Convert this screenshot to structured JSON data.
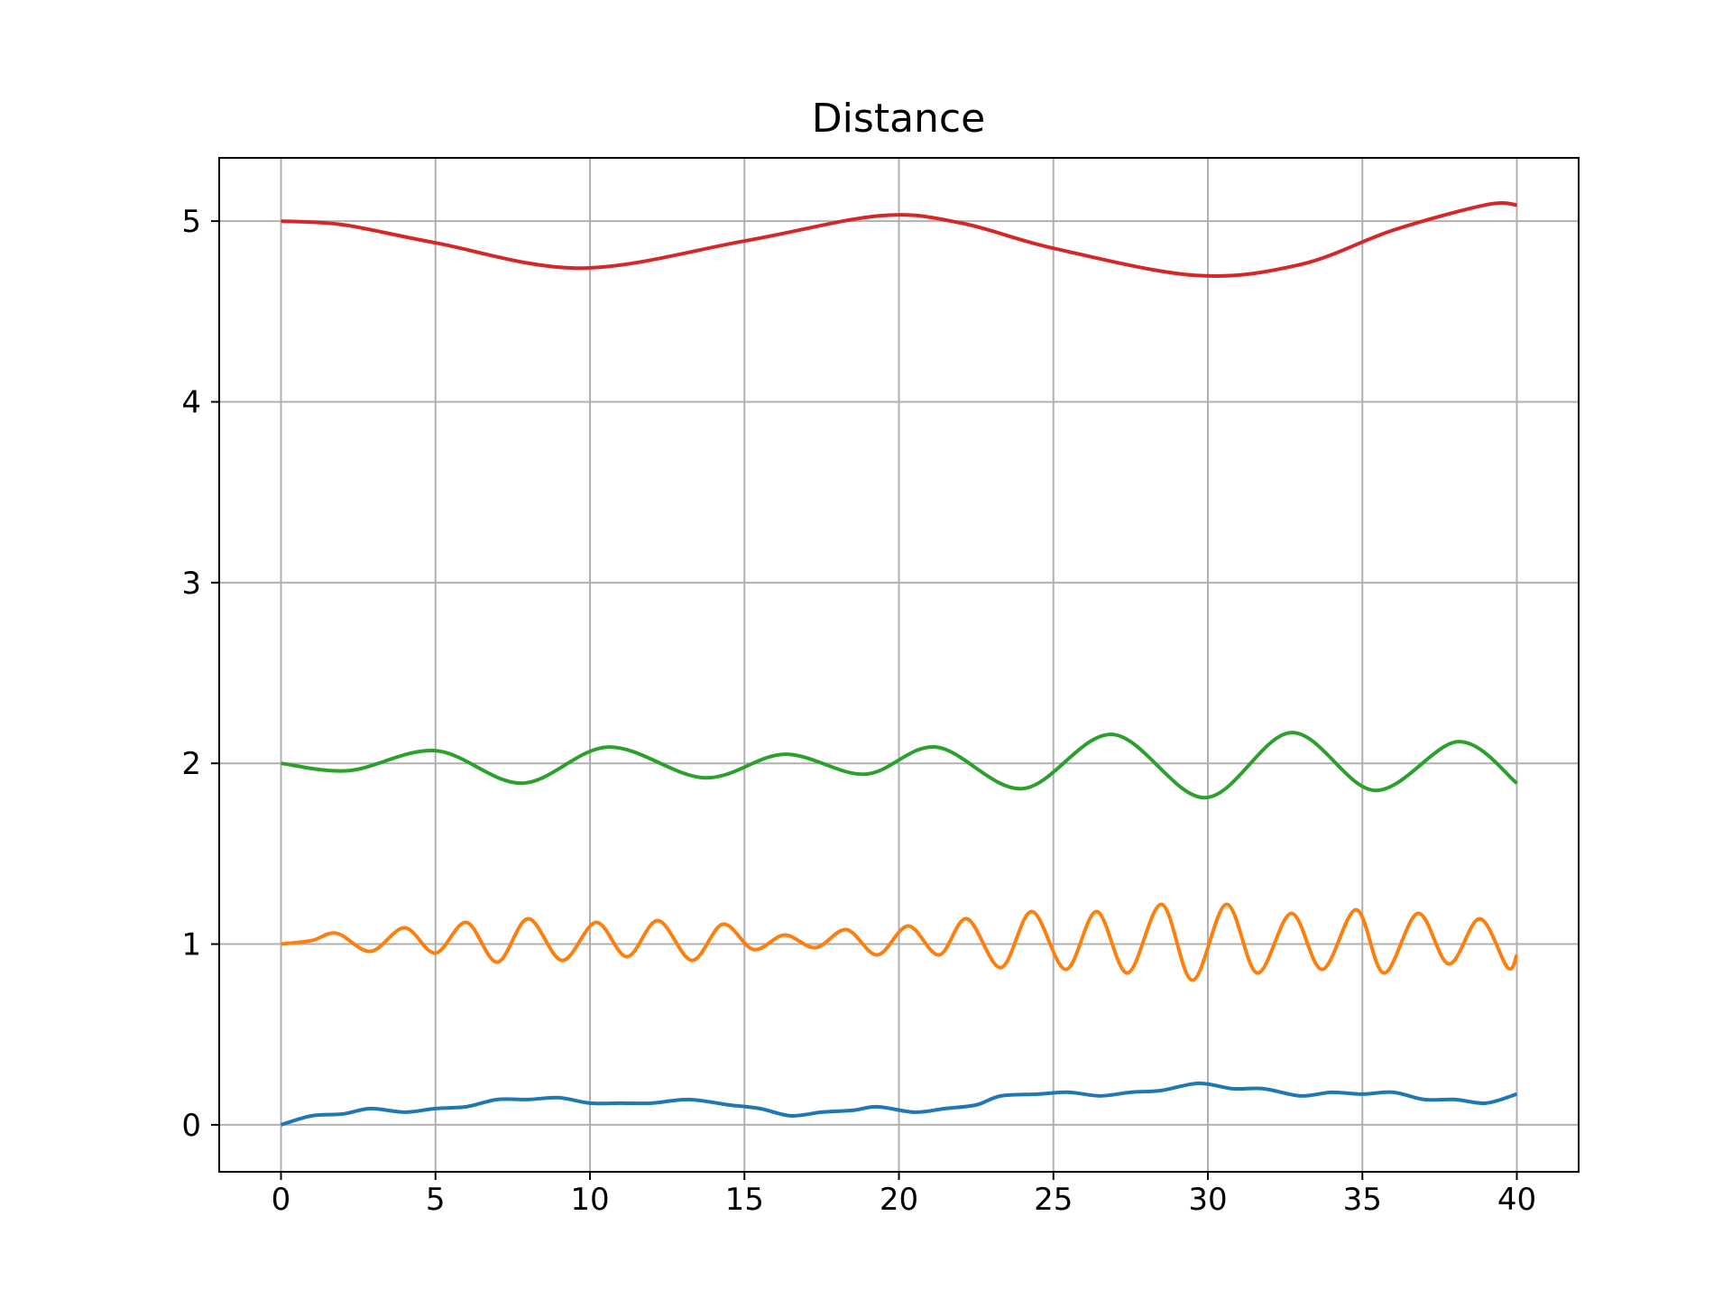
{
  "chart_data": {
    "type": "line",
    "title": "Distance",
    "grid": true,
    "xlim": [
      -2,
      42
    ],
    "ylim": [
      -0.26,
      5.35
    ],
    "xticks": [
      0,
      5,
      10,
      15,
      20,
      25,
      30,
      35,
      40
    ],
    "yticks": [
      0,
      1,
      2,
      3,
      4,
      5
    ],
    "series": [
      {
        "color": "#1f77b4",
        "x": [
          0,
          1,
          2,
          2.9,
          4,
          5,
          6,
          7,
          8,
          9,
          10,
          11,
          12,
          13.2,
          14.5,
          15.5,
          16.5,
          17.5,
          18.5,
          19.3,
          20.5,
          21.5,
          22.5,
          23.3,
          24.5,
          25.5,
          26.5,
          27.5,
          28.5,
          29.7,
          30.8,
          31.8,
          33,
          34,
          35,
          36,
          37,
          38,
          39,
          40
        ],
        "values": [
          0,
          0.05,
          0.06,
          0.09,
          0.07,
          0.09,
          0.1,
          0.14,
          0.14,
          0.15,
          0.12,
          0.12,
          0.12,
          0.14,
          0.11,
          0.09,
          0.05,
          0.07,
          0.08,
          0.1,
          0.07,
          0.09,
          0.11,
          0.16,
          0.17,
          0.18,
          0.16,
          0.18,
          0.19,
          0.23,
          0.2,
          0.2,
          0.16,
          0.18,
          0.17,
          0.18,
          0.14,
          0.14,
          0.12,
          0.17
        ]
      },
      {
        "color": "#ff7f0e",
        "x": [
          0,
          1,
          1.8,
          2.9,
          4,
          5,
          6,
          7,
          8,
          9.1,
          10.2,
          11.2,
          12.2,
          13.3,
          14.3,
          15.3,
          16.3,
          17.3,
          18.3,
          19.3,
          20.3,
          21.3,
          22.2,
          23.3,
          24.3,
          25.4,
          26.4,
          27.4,
          28.5,
          29.5,
          30.6,
          31.6,
          32.7,
          33.7,
          34.8,
          35.7,
          36.8,
          37.8,
          38.8,
          39.7,
          40
        ],
        "values": [
          1.0,
          1.02,
          1.06,
          0.96,
          1.09,
          0.95,
          1.12,
          0.9,
          1.14,
          0.91,
          1.12,
          0.93,
          1.13,
          0.91,
          1.11,
          0.97,
          1.05,
          0.98,
          1.08,
          0.94,
          1.1,
          0.94,
          1.14,
          0.87,
          1.18,
          0.86,
          1.18,
          0.84,
          1.22,
          0.8,
          1.22,
          0.84,
          1.17,
          0.86,
          1.19,
          0.84,
          1.17,
          0.89,
          1.14,
          0.87,
          0.94
        ]
      },
      {
        "color": "#2ca02c",
        "x": [
          0,
          2.2,
          5,
          7.8,
          10.6,
          13.7,
          16.3,
          18.9,
          21.2,
          24,
          26.9,
          29.9,
          32.7,
          35.4,
          38.1,
          40
        ],
        "values": [
          2.0,
          1.96,
          2.07,
          1.89,
          2.09,
          1.92,
          2.05,
          1.94,
          2.09,
          1.86,
          2.16,
          1.81,
          2.17,
          1.85,
          2.12,
          1.89
        ]
      },
      {
        "color": "#d62728",
        "x": [
          0,
          2,
          5,
          9.7,
          15,
          19.4,
          22,
          25,
          29.6,
          33,
          36,
          39,
          40
        ],
        "values": [
          5.0,
          4.98,
          4.88,
          4.74,
          4.89,
          5.03,
          4.99,
          4.85,
          4.7,
          4.76,
          4.95,
          5.09,
          5.09
        ]
      }
    ]
  }
}
